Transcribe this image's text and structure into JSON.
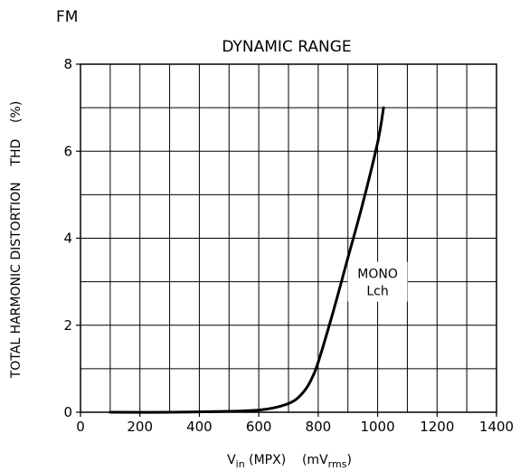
{
  "corner_label": "FM",
  "chart_data": {
    "type": "line",
    "title": "DYNAMIC RANGE",
    "xlabel": {
      "main": "V",
      "sub": "in",
      "rest": " (MPX)    (mV",
      "unit_sub": "rms",
      "close": ")"
    },
    "ylabel": "TOTAL HARMONIC DISTORTION    THD    (%)",
    "xlim": [
      0,
      1400
    ],
    "ylim": [
      0,
      8
    ],
    "x_ticks": [
      0,
      200,
      400,
      600,
      800,
      1000,
      1200,
      1400
    ],
    "y_ticks": [
      0,
      2,
      4,
      6,
      8
    ],
    "grid": true,
    "x_grid_step": 100,
    "y_grid_step": 1,
    "series": [
      {
        "name": "",
        "color": "#000000",
        "x": [
          100,
          300,
          500,
          600,
          650,
          700,
          730,
          760,
          780,
          800,
          850,
          900,
          950,
          1000,
          1020
        ],
        "y": [
          0.0,
          0.0,
          0.02,
          0.05,
          0.1,
          0.2,
          0.32,
          0.55,
          0.8,
          1.15,
          2.3,
          3.55,
          4.8,
          6.2,
          7.0
        ]
      }
    ],
    "annotations": [
      {
        "text": [
          "MONO",
          "Lch"
        ],
        "x": 1000,
        "y": 3.0
      }
    ]
  }
}
